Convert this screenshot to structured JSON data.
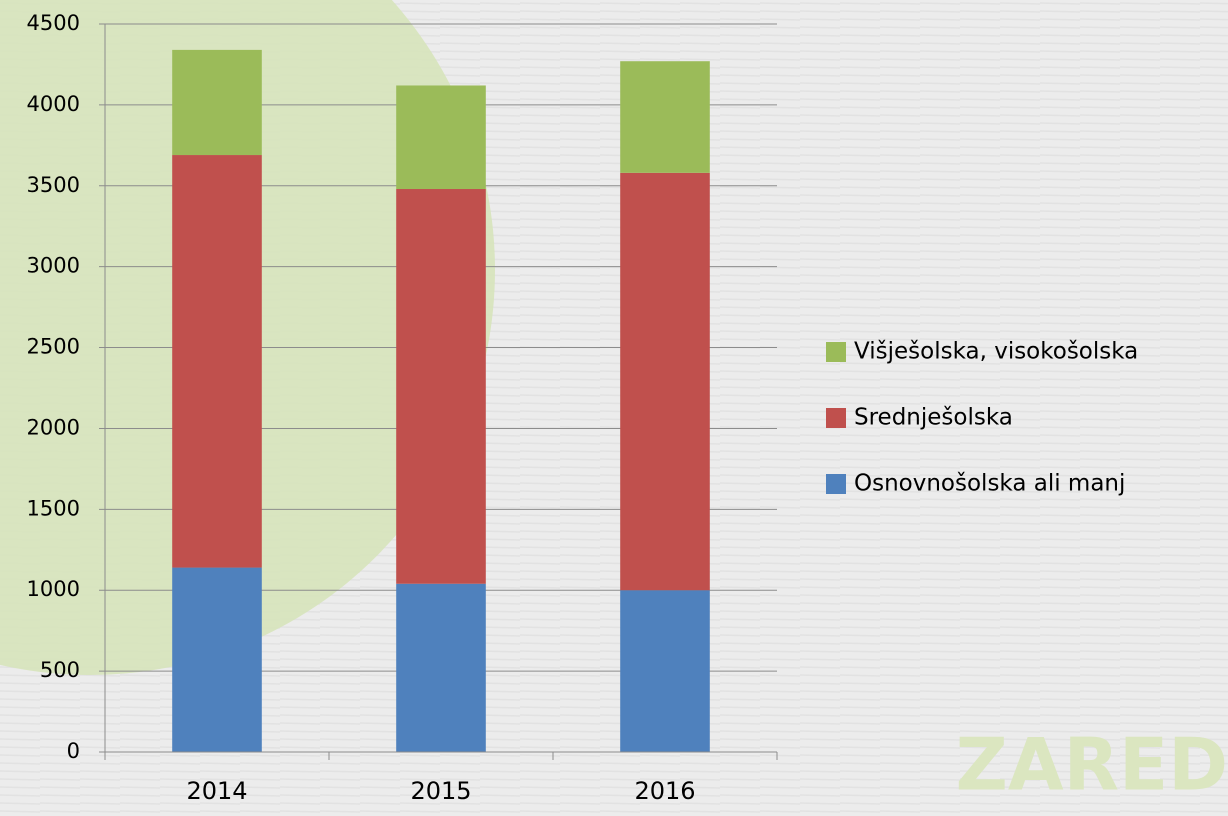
{
  "chart_data": {
    "type": "stacked_bar",
    "categories": [
      "2014",
      "2015",
      "2016"
    ],
    "series": [
      {
        "name": "Osnovnošolska ali manj",
        "color": "#4f81bd",
        "values": [
          1140,
          1040,
          1000
        ]
      },
      {
        "name": "Srednješolska",
        "color": "#c0504d",
        "values": [
          2550,
          2440,
          2580
        ]
      },
      {
        "name": "Višješolska, visokošolska",
        "color": "#9bbb59",
        "values": [
          650,
          640,
          690
        ]
      }
    ],
    "ylim": [
      0,
      4500
    ],
    "yticks": [
      0,
      500,
      1000,
      1500,
      2000,
      2500,
      3000,
      3500,
      4000,
      4500
    ],
    "grid": true,
    "legend": "right"
  },
  "watermark": "ZARED"
}
